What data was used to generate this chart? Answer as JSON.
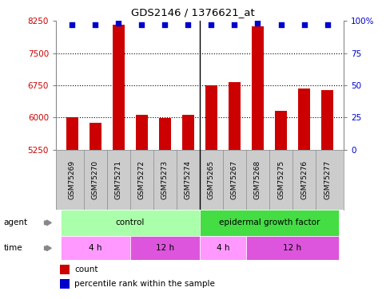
{
  "title": "GDS2146 / 1376621_at",
  "samples": [
    "GSM75269",
    "GSM75270",
    "GSM75271",
    "GSM75272",
    "GSM75273",
    "GSM75274",
    "GSM75265",
    "GSM75267",
    "GSM75268",
    "GSM75275",
    "GSM75276",
    "GSM75277"
  ],
  "counts": [
    6000,
    5880,
    8170,
    6060,
    5990,
    6060,
    6740,
    6820,
    8130,
    6160,
    6670,
    6640
  ],
  "percentile_ranks": [
    97,
    97,
    98,
    97,
    97,
    97,
    97,
    97,
    98,
    97,
    97,
    97
  ],
  "ylim_left": [
    5250,
    8250
  ],
  "ylim_right": [
    0,
    100
  ],
  "yticks_left": [
    5250,
    6000,
    6750,
    7500,
    8250
  ],
  "yticks_right": [
    0,
    25,
    50,
    75,
    100
  ],
  "ytick_right_labels": [
    "0",
    "25",
    "50",
    "75",
    "100%"
  ],
  "bar_color": "#cc0000",
  "dot_color": "#0000cc",
  "agent_groups": [
    {
      "label": "control",
      "start": 0,
      "end": 5,
      "color": "#aaffaa"
    },
    {
      "label": "epidermal growth factor",
      "start": 6,
      "end": 11,
      "color": "#44dd44"
    }
  ],
  "time_groups": [
    {
      "label": "4 h",
      "start": 0,
      "end": 2,
      "color": "#ff99ff"
    },
    {
      "label": "12 h",
      "start": 3,
      "end": 5,
      "color": "#dd55dd"
    },
    {
      "label": "4 h",
      "start": 6,
      "end": 7,
      "color": "#ff99ff"
    },
    {
      "label": "12 h",
      "start": 8,
      "end": 11,
      "color": "#dd55dd"
    }
  ],
  "legend_count_color": "#cc0000",
  "legend_dot_color": "#0000cc",
  "sample_label_bg": "#cccccc",
  "plot_bg_color": "#ffffff",
  "grid_color": "#000000"
}
